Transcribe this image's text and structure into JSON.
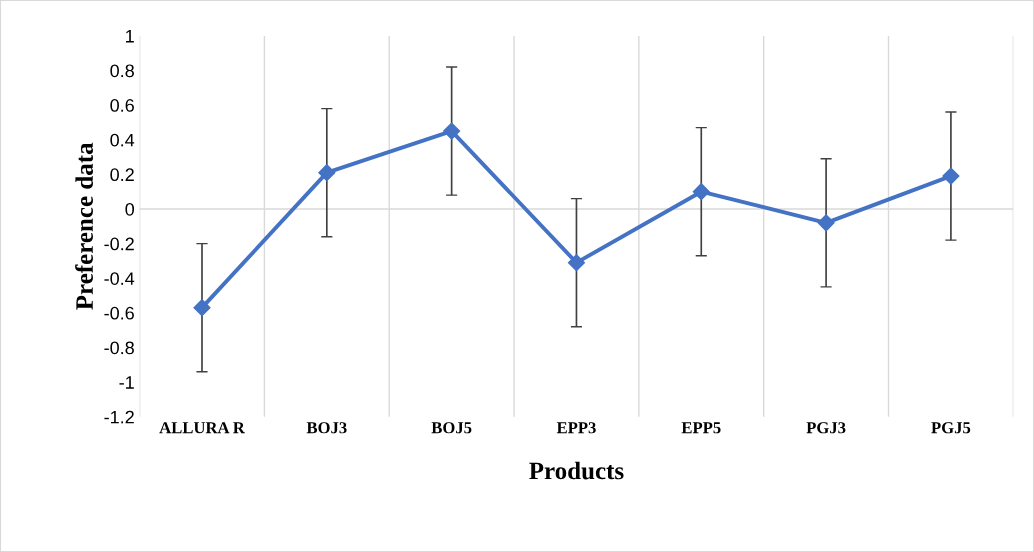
{
  "chart_data": {
    "type": "line",
    "xlabel": "Products",
    "ylabel": "Preference data",
    "categories": [
      "ALLURA R",
      "BOJ3",
      "BOJ5",
      "EPP3",
      "EPP5",
      "PGJ3",
      "PGJ5"
    ],
    "series": [
      {
        "color": "#4472c4",
        "values": [
          -0.57,
          0.21,
          0.45,
          -0.31,
          0.1,
          -0.08,
          0.19
        ],
        "errors": [
          0.37,
          0.37,
          0.37,
          0.37,
          0.37,
          0.37,
          0.37
        ]
      }
    ],
    "ylim": [
      -1.2,
      1
    ],
    "yticks": [
      -1.2,
      -1,
      -0.8,
      -0.6,
      -0.4,
      -0.2,
      0,
      0.2,
      0.4,
      0.6,
      0.8,
      1
    ],
    "ref_lines": [
      {
        "axis": "y",
        "value": 0,
        "color": "#d9d9d9"
      }
    ],
    "grid": "x",
    "marker": "diamond",
    "line_style": "solid"
  }
}
